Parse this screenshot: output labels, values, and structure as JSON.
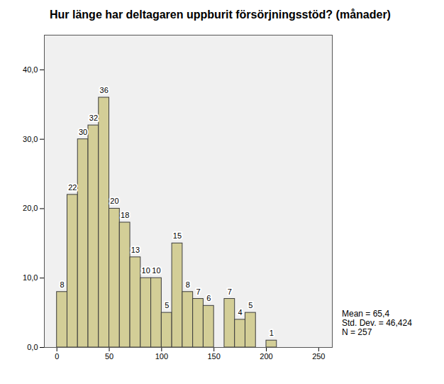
{
  "chart_data": {
    "type": "histogram",
    "title": "Hur länge har deltagaren uppburit försörjningsstöd? (månader)",
    "bins": [
      0,
      10,
      20,
      30,
      40,
      50,
      60,
      70,
      80,
      90,
      100,
      110,
      120,
      130,
      140,
      150,
      160,
      170,
      180,
      190,
      200,
      210
    ],
    "values": [
      8,
      22,
      30,
      32,
      36,
      20,
      18,
      13,
      10,
      10,
      5,
      15,
      8,
      7,
      6,
      0,
      7,
      4,
      5,
      0,
      1
    ],
    "value_labels": [
      "8",
      "22",
      "30",
      "32",
      "36",
      "20",
      "18",
      "13",
      "10",
      "10",
      "5",
      "15",
      "8",
      "7",
      "6",
      null,
      "7",
      "4",
      "5",
      null,
      "1"
    ],
    "data_labels": true,
    "color": "#d3ce97",
    "xlim": [
      -12,
      263
    ],
    "xticks": [
      0,
      50,
      100,
      150,
      200,
      250
    ],
    "ylim": [
      0,
      45
    ],
    "yticks": [
      {
        "value": 0,
        "label": "0,0"
      },
      {
        "value": 10,
        "label": "10,0"
      },
      {
        "value": 20,
        "label": "20,0"
      },
      {
        "value": 30,
        "label": "30,0"
      },
      {
        "value": 40,
        "label": "40,0"
      }
    ],
    "grid": false,
    "annotations": [
      "Mean = 65,4",
      "Std. Dev. = 46,424",
      "N = 257"
    ]
  }
}
